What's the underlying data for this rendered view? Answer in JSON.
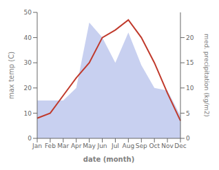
{
  "chart_data": {
    "type": "line",
    "categories": [
      "Jan",
      "Feb",
      "Mar",
      "Apr",
      "May",
      "Jun",
      "Jul",
      "Aug",
      "Sep",
      "Oct",
      "Nov",
      "Dec"
    ],
    "series": [
      {
        "type": "area",
        "color": "#c8d0f0",
        "values": [
          15,
          15,
          15,
          20,
          46,
          40,
          30,
          42,
          29,
          20,
          19,
          9
        ]
      },
      {
        "type": "line",
        "color": "#c0392b",
        "values": [
          8,
          10,
          17,
          24,
          30,
          40,
          43,
          47,
          40,
          30,
          18,
          7
        ]
      }
    ],
    "xlabel": "date (month)",
    "ylabel": "max temp (C)",
    "y2label": "med. precipitation (kg/m2)",
    "ylim": [
      0,
      50
    ],
    "yticks": [
      0,
      10,
      20,
      30,
      40,
      50
    ],
    "y2lim": [
      0,
      25
    ],
    "y2ticks": [
      0,
      5,
      10,
      15,
      20
    ],
    "grid": false
  }
}
